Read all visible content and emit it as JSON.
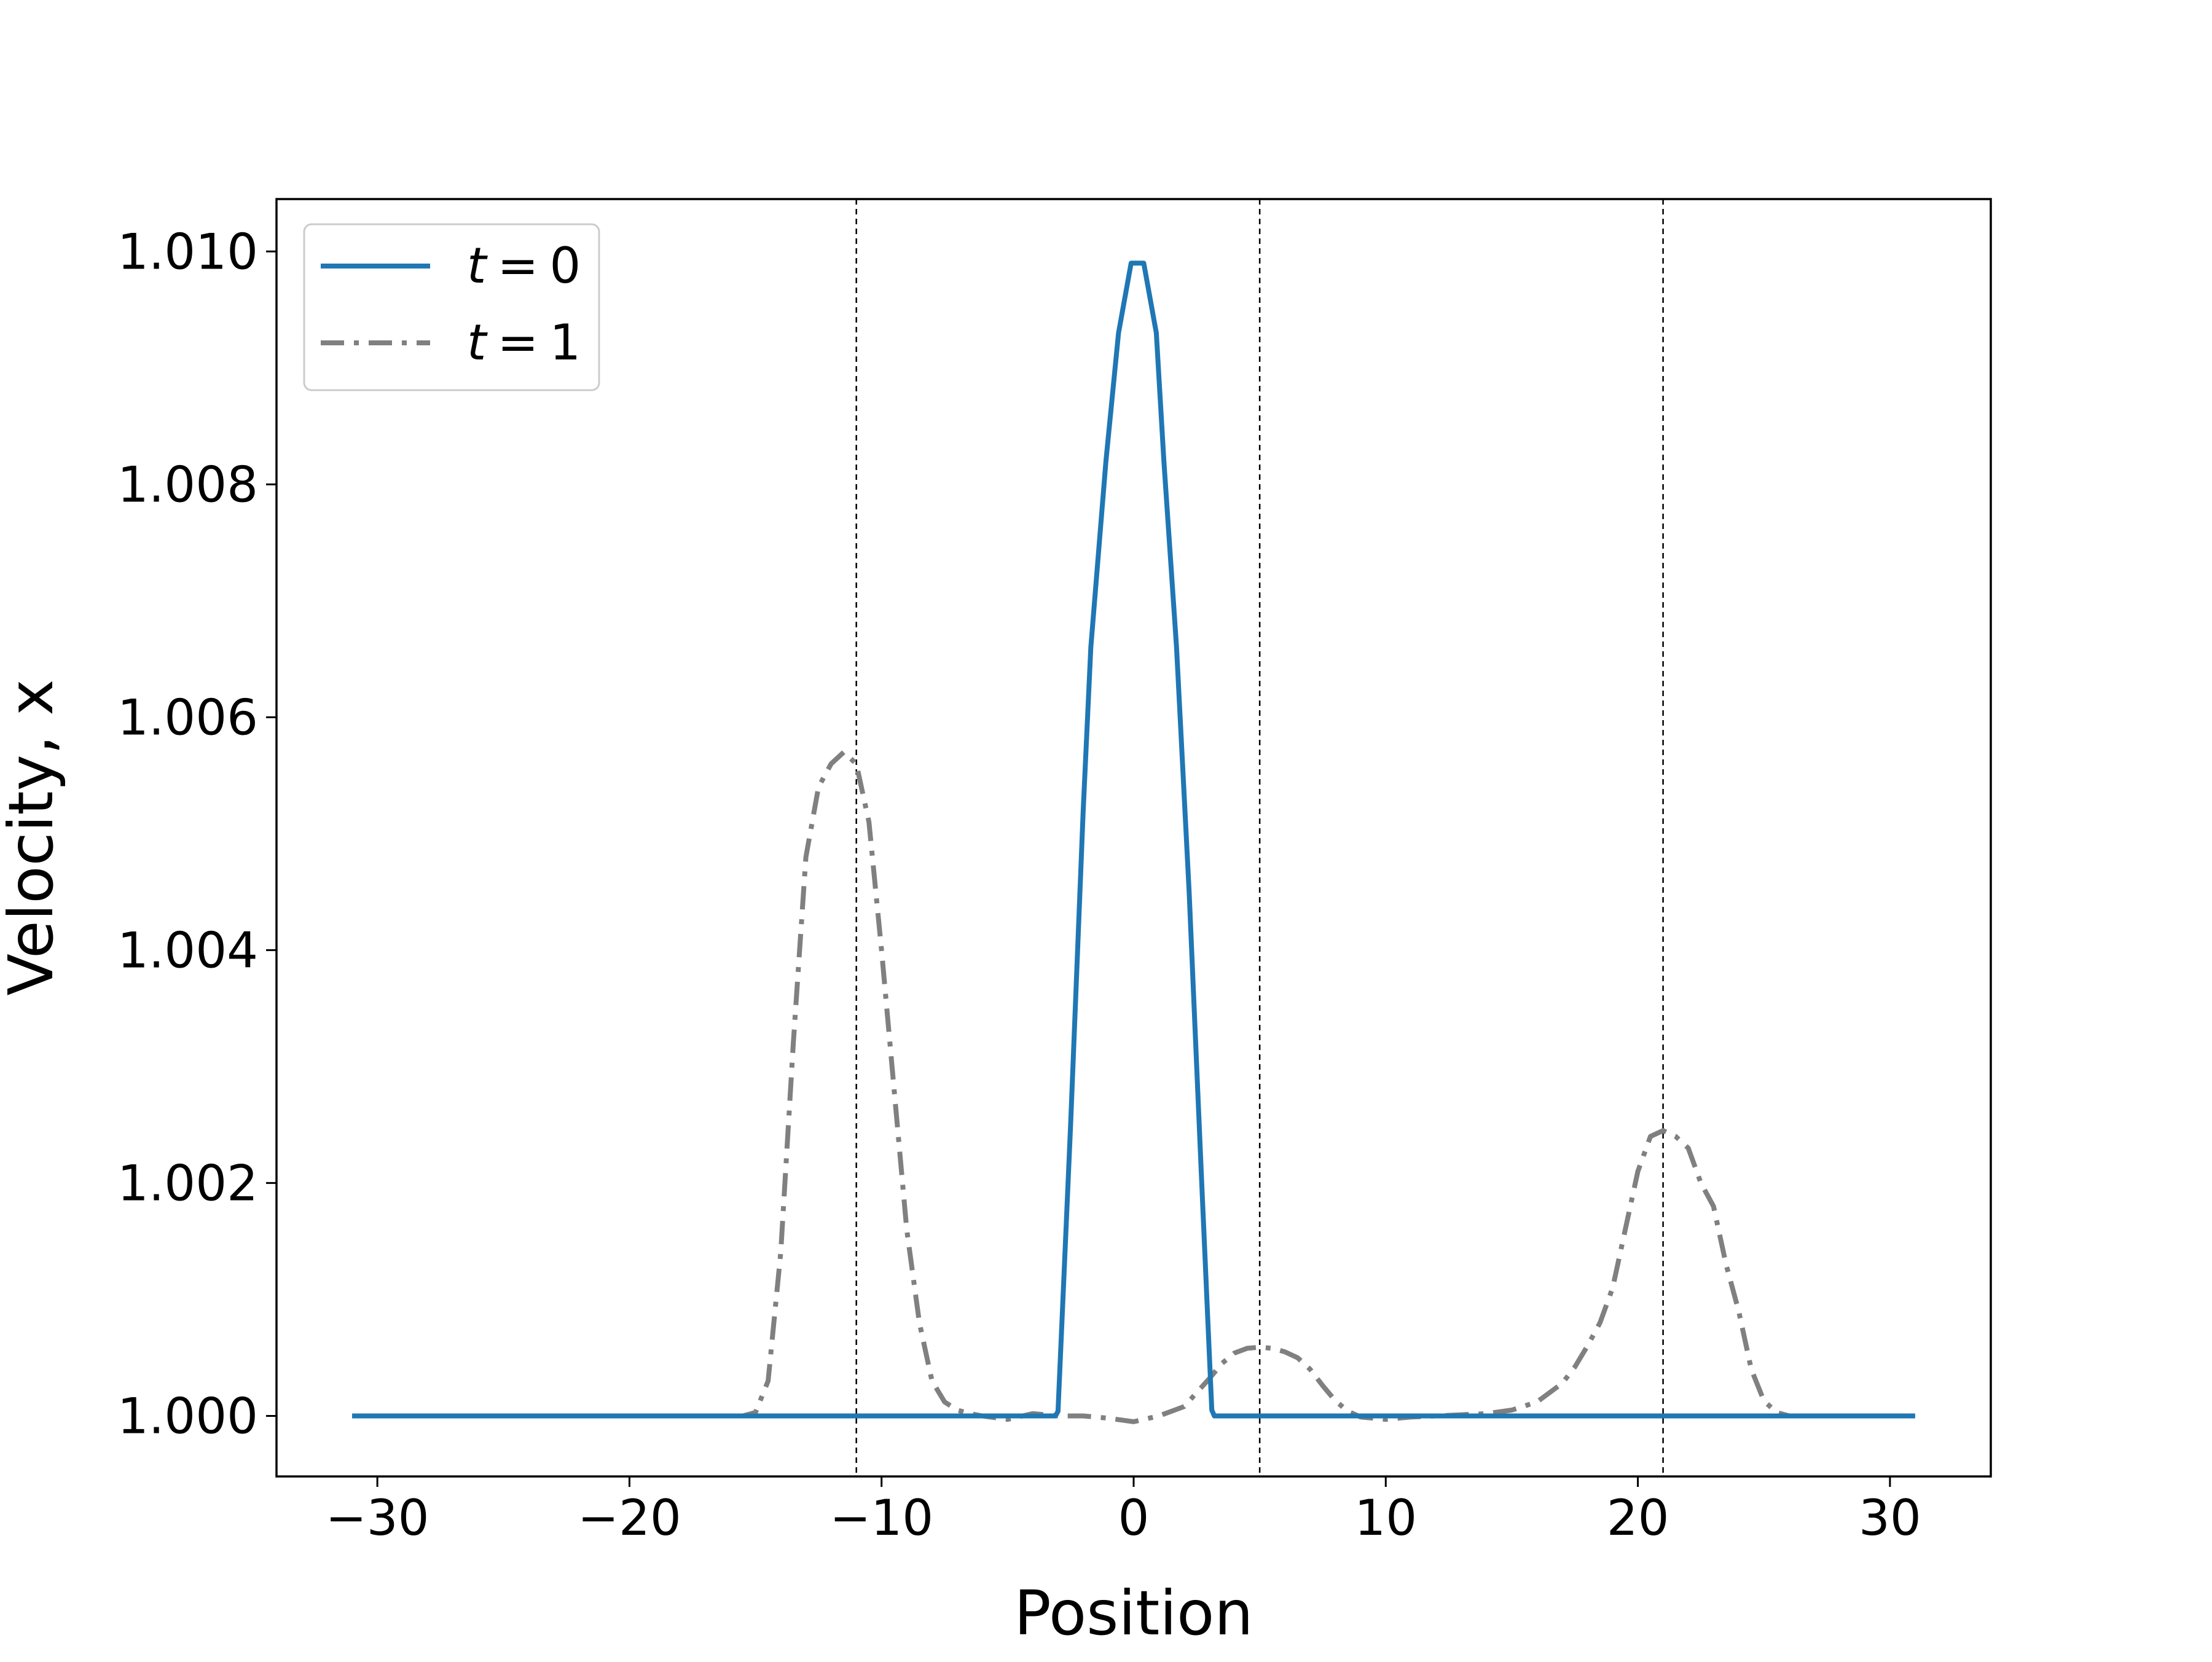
{
  "chart_data": {
    "type": "line",
    "title": "",
    "xlabel": "Position",
    "ylabel": "Velocity, x",
    "xlim": [
      -34,
      34
    ],
    "ylim": [
      0.99948,
      1.01045
    ],
    "xticks": [
      -30,
      -20,
      -10,
      0,
      10,
      20,
      30
    ],
    "xtick_labels": [
      "−30",
      "−20",
      "−10",
      "0",
      "10",
      "20",
      "30"
    ],
    "yticks": [
      1.0,
      1.002,
      1.004,
      1.006,
      1.008,
      1.01
    ],
    "ytick_labels": [
      "1.000",
      "1.002",
      "1.004",
      "1.006",
      "1.008",
      "1.010"
    ],
    "grid": false,
    "legend_position": "top-left",
    "vlines": [
      -11,
      5,
      21
    ],
    "colors": {
      "t0": "#1f77b4",
      "t1": "#808080",
      "vline": "#000000"
    },
    "series": [
      {
        "name": "t = 0",
        "name_var": "t",
        "name_op": "=",
        "name_val": "0",
        "style": "solid",
        "x": [
          -31,
          -3.1,
          -3.0,
          -2.5,
          -2.0,
          -1.7,
          -1.1,
          -0.6,
          -0.1,
          0.4,
          0.9,
          1.2,
          1.7,
          2.2,
          2.7,
          3.1,
          3.2,
          31
        ],
        "values": [
          1.0,
          1.0,
          1.00004,
          1.0025,
          1.0052,
          1.0066,
          1.0082,
          1.0093,
          1.0099,
          1.0099,
          1.0093,
          1.0082,
          1.0066,
          1.0045,
          1.002,
          1.00005,
          1.0,
          1.0
        ]
      },
      {
        "name": "t = 1",
        "name_var": "t",
        "name_op": "=",
        "name_val": "1",
        "style": "dashdot",
        "x": [
          -31,
          -15.5,
          -15.0,
          -14.5,
          -14.0,
          -13.5,
          -13.0,
          -12.5,
          -12.0,
          -11.5,
          -11.0,
          -10.5,
          -10.0,
          -9.5,
          -9.0,
          -8.5,
          -8.0,
          -7.5,
          -7.0,
          -6.5,
          -6.0,
          -5.0,
          -4.0,
          -3.0,
          -2.0,
          -1.0,
          0.0,
          1.0,
          2.0,
          2.5,
          3.0,
          3.5,
          4.0,
          4.5,
          5.0,
          5.5,
          6.0,
          6.5,
          7.0,
          7.5,
          8.0,
          8.5,
          9.0,
          10.0,
          11.0,
          12.0,
          13.0,
          14.0,
          15.0,
          16.0,
          17.0,
          17.5,
          18.0,
          18.5,
          19.0,
          19.5,
          20.0,
          20.5,
          21.0,
          21.5,
          22.0,
          22.5,
          23.0,
          23.5,
          24.0,
          24.5,
          25.0,
          25.5,
          26.0,
          31
        ],
        "values": [
          1.0,
          1.0,
          1.00003,
          1.0003,
          1.0014,
          1.0032,
          1.0048,
          1.0054,
          1.0056,
          1.0057,
          1.0056,
          1.0051,
          1.004,
          1.0028,
          1.0016,
          1.0008,
          1.0003,
          1.00012,
          1.00005,
          1.00002,
          1.0,
          0.99997,
          1.00002,
          1.0,
          1.0,
          0.99998,
          0.99995,
          1.0,
          1.00008,
          1.0002,
          1.00032,
          1.00045,
          1.00054,
          1.00058,
          1.00059,
          1.00058,
          1.00055,
          1.0005,
          1.0004,
          1.00026,
          1.00013,
          1.00004,
          0.99999,
          0.99997,
          0.99999,
          1.0,
          1.00001,
          1.00002,
          1.00005,
          1.00012,
          1.00028,
          1.00042,
          1.0006,
          1.0008,
          1.0011,
          1.0016,
          1.0021,
          1.0024,
          1.00245,
          1.0024,
          1.0023,
          1.002,
          1.0018,
          1.0013,
          1.0009,
          1.0004,
          1.00013,
          1.00003,
          1.0,
          1.0
        ]
      }
    ]
  }
}
